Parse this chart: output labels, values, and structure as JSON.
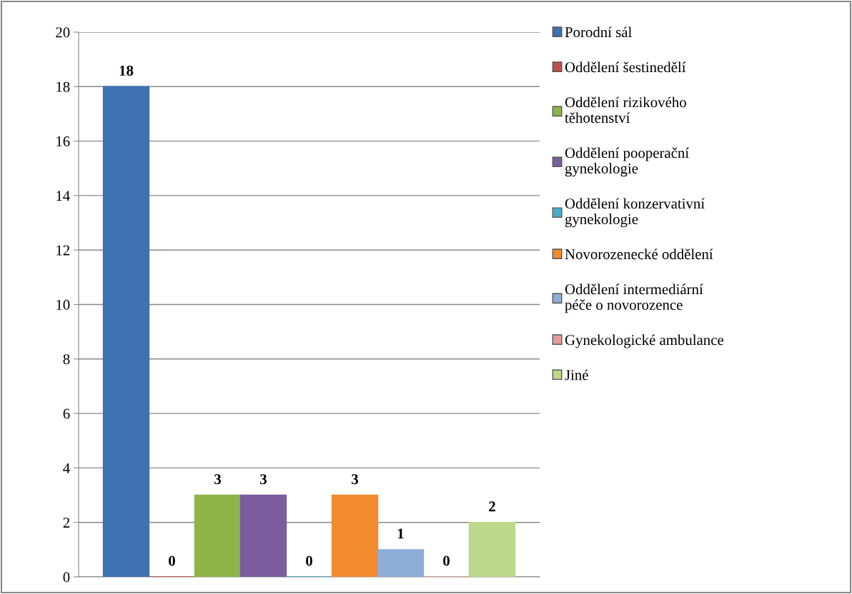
{
  "chart_data": {
    "type": "bar",
    "categories": [
      null
    ],
    "series": [
      {
        "name": "Porodní sál",
        "color": "#3f72b0",
        "values": [
          18
        ]
      },
      {
        "name": "Oddělení šestinedělí",
        "color": "#c0504d",
        "values": [
          0
        ]
      },
      {
        "name": "Oddělení rizikového\ntěhotenství",
        "color": "#8fb44a",
        "values": [
          3
        ]
      },
      {
        "name": "Oddělení pooperační\ngynekologie",
        "color": "#7b5d9e",
        "values": [
          3
        ]
      },
      {
        "name": "Oddělení konzervativní\ngynekologie",
        "color": "#4bacc6",
        "values": [
          0
        ]
      },
      {
        "name": "Novorozenecké oddělení",
        "color": "#f28a2e",
        "values": [
          3
        ]
      },
      {
        "name": "Oddělení intermediární\npéče o novorozence",
        "color": "#8eaed8",
        "values": [
          1
        ]
      },
      {
        "name": "Gynekologické ambulance",
        "color": "#e4a0a0",
        "values": [
          0
        ]
      },
      {
        "name": "Jiné",
        "color": "#bcd88a",
        "values": [
          2
        ]
      }
    ],
    "ylim": [
      0,
      20
    ],
    "yticks": [
      0,
      2,
      4,
      6,
      8,
      10,
      12,
      14,
      16,
      18,
      20
    ],
    "grid": "y",
    "legend": "right",
    "data_labels": true
  }
}
